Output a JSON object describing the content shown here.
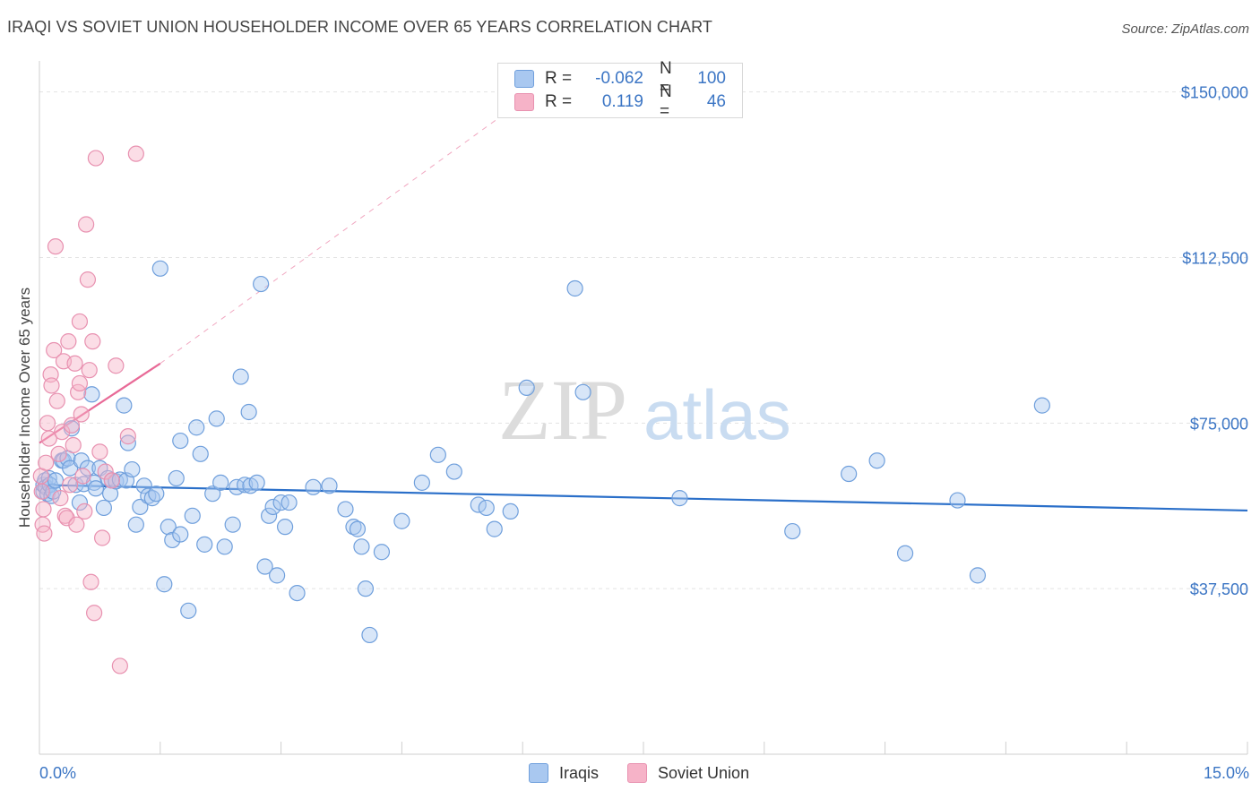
{
  "header": {
    "title": "IRAQI VS SOVIET UNION HOUSEHOLDER INCOME OVER 65 YEARS CORRELATION CHART",
    "source": "Source: ZipAtlas.com"
  },
  "colors": {
    "blue": "#3b75c4",
    "blue_fill": "#a9c8f0",
    "blue_line": "#2a6fc9",
    "pink": "#e86a97",
    "pink_fill": "#f6b3c8",
    "grid": "#e3e3e3"
  },
  "legend": {
    "rows": [
      {
        "r_label": "R =",
        "r_value": "-0.062",
        "n_label": "N =",
        "n_value": "100"
      },
      {
        "r_label": "R =",
        "r_value": "0.119",
        "n_label": "N =",
        "n_value": "46"
      }
    ]
  },
  "watermark": {
    "zip": "ZIP",
    "atlas": "atlas"
  },
  "chart_data": {
    "type": "scatter",
    "title": "IRAQI VS SOVIET UNION HOUSEHOLDER INCOME OVER 65 YEARS CORRELATION CHART",
    "xlabel": "",
    "ylabel": "Householder Income Over 65 years",
    "xlim": [
      0,
      15
    ],
    "ylim": [
      0,
      155000
    ],
    "x_tick_labels": [
      "0.0%",
      "15.0%"
    ],
    "y_ticks": [
      37500,
      75000,
      112500,
      150000
    ],
    "y_tick_labels": [
      "$37,500",
      "$75,000",
      "$112,500",
      "$150,000"
    ],
    "grid": true,
    "series": [
      {
        "name": "Iraqis",
        "points": [
          [
            0.05,
            59500
          ],
          [
            0.05,
            61000
          ],
          [
            0.07,
            62000
          ],
          [
            0.08,
            60500
          ],
          [
            0.1,
            59000
          ],
          [
            0.12,
            62500
          ],
          [
            0.13,
            61000
          ],
          [
            0.15,
            58500
          ],
          [
            0.17,
            59500
          ],
          [
            0.2,
            62000
          ],
          [
            0.28,
            66500
          ],
          [
            0.3,
            66500
          ],
          [
            0.35,
            67000
          ],
          [
            0.38,
            64800
          ],
          [
            0.4,
            73800
          ],
          [
            0.45,
            61000
          ],
          [
            0.5,
            57000
          ],
          [
            0.52,
            66500
          ],
          [
            0.55,
            61200
          ],
          [
            0.6,
            64800
          ],
          [
            0.65,
            81500
          ],
          [
            0.68,
            61500
          ],
          [
            0.7,
            60200
          ],
          [
            0.75,
            64800
          ],
          [
            0.8,
            55800
          ],
          [
            0.85,
            62500
          ],
          [
            0.88,
            59000
          ],
          [
            0.9,
            62000
          ],
          [
            0.95,
            61800
          ],
          [
            1.0,
            62200
          ],
          [
            1.05,
            79000
          ],
          [
            1.08,
            62000
          ],
          [
            1.1,
            70500
          ],
          [
            1.15,
            64500
          ],
          [
            1.2,
            52000
          ],
          [
            1.25,
            56000
          ],
          [
            1.3,
            60800
          ],
          [
            1.35,
            58500
          ],
          [
            1.4,
            58000
          ],
          [
            1.45,
            59000
          ],
          [
            1.5,
            110000
          ],
          [
            1.55,
            38500
          ],
          [
            1.6,
            51500
          ],
          [
            1.65,
            48500
          ],
          [
            1.7,
            62500
          ],
          [
            1.75,
            71000
          ],
          [
            1.75,
            49800
          ],
          [
            1.85,
            32500
          ],
          [
            1.9,
            54000
          ],
          [
            1.95,
            74000
          ],
          [
            2.0,
            68000
          ],
          [
            2.05,
            47500
          ],
          [
            2.15,
            59000
          ],
          [
            2.2,
            76000
          ],
          [
            2.25,
            61500
          ],
          [
            2.3,
            47000
          ],
          [
            2.4,
            52000
          ],
          [
            2.45,
            60500
          ],
          [
            2.5,
            85500
          ],
          [
            2.55,
            61000
          ],
          [
            2.6,
            77500
          ],
          [
            2.62,
            60800
          ],
          [
            2.7,
            61500
          ],
          [
            2.75,
            106500
          ],
          [
            2.8,
            42500
          ],
          [
            2.85,
            54000
          ],
          [
            2.9,
            56000
          ],
          [
            2.95,
            40500
          ],
          [
            3.0,
            57000
          ],
          [
            3.05,
            51500
          ],
          [
            3.1,
            57000
          ],
          [
            3.2,
            36500
          ],
          [
            3.4,
            60500
          ],
          [
            3.6,
            60800
          ],
          [
            3.8,
            55500
          ],
          [
            3.9,
            51500
          ],
          [
            3.95,
            51000
          ],
          [
            4.0,
            47000
          ],
          [
            4.05,
            37500
          ],
          [
            4.1,
            27000
          ],
          [
            4.25,
            45800
          ],
          [
            4.5,
            52800
          ],
          [
            4.75,
            61500
          ],
          [
            4.95,
            67800
          ],
          [
            5.15,
            64000
          ],
          [
            5.45,
            56500
          ],
          [
            5.55,
            55800
          ],
          [
            5.65,
            51000
          ],
          [
            5.85,
            55000
          ],
          [
            6.05,
            83000
          ],
          [
            6.75,
            82000
          ],
          [
            6.65,
            105500
          ],
          [
            7.95,
            58000
          ],
          [
            9.35,
            50500
          ],
          [
            10.05,
            63500
          ],
          [
            10.4,
            66500
          ],
          [
            10.75,
            45500
          ],
          [
            11.4,
            57500
          ],
          [
            11.65,
            40500
          ],
          [
            12.45,
            79000
          ]
        ]
      },
      {
        "name": "Soviet Union",
        "points": [
          [
            0.02,
            63000
          ],
          [
            0.03,
            59500
          ],
          [
            0.04,
            52000
          ],
          [
            0.05,
            55500
          ],
          [
            0.06,
            50000
          ],
          [
            0.08,
            66000
          ],
          [
            0.1,
            75000
          ],
          [
            0.12,
            71500
          ],
          [
            0.14,
            86000
          ],
          [
            0.15,
            83500
          ],
          [
            0.18,
            91500
          ],
          [
            0.2,
            115000
          ],
          [
            0.22,
            80000
          ],
          [
            0.24,
            68000
          ],
          [
            0.26,
            58000
          ],
          [
            0.28,
            73000
          ],
          [
            0.3,
            89000
          ],
          [
            0.32,
            54000
          ],
          [
            0.34,
            53500
          ],
          [
            0.36,
            93500
          ],
          [
            0.38,
            61000
          ],
          [
            0.4,
            74500
          ],
          [
            0.42,
            70000
          ],
          [
            0.44,
            88500
          ],
          [
            0.46,
            52000
          ],
          [
            0.48,
            82000
          ],
          [
            0.5,
            84000
          ],
          [
            0.52,
            77000
          ],
          [
            0.54,
            63000
          ],
          [
            0.56,
            55000
          ],
          [
            0.58,
            120000
          ],
          [
            0.6,
            107500
          ],
          [
            0.62,
            87000
          ],
          [
            0.64,
            39000
          ],
          [
            0.66,
            93500
          ],
          [
            0.68,
            32000
          ],
          [
            0.7,
            135000
          ],
          [
            0.75,
            68500
          ],
          [
            0.78,
            49000
          ],
          [
            0.82,
            64000
          ],
          [
            0.9,
            62000
          ],
          [
            0.95,
            88000
          ],
          [
            1.0,
            20000
          ],
          [
            1.1,
            72000
          ],
          [
            1.2,
            136000
          ],
          [
            0.5,
            98000
          ]
        ]
      }
    ],
    "trend_lines": [
      {
        "series": "Iraqis",
        "x": [
          0,
          15
        ],
        "y": [
          61000,
          55200
        ],
        "style": "solid"
      },
      {
        "series": "Soviet Union",
        "x": [
          0,
          1.5
        ],
        "y": [
          70500,
          88500
        ],
        "style": "solid"
      },
      {
        "series": "Soviet Union",
        "x": [
          1.5,
          6.3
        ],
        "y": [
          88500,
          152000
        ],
        "style": "dashed"
      }
    ]
  }
}
